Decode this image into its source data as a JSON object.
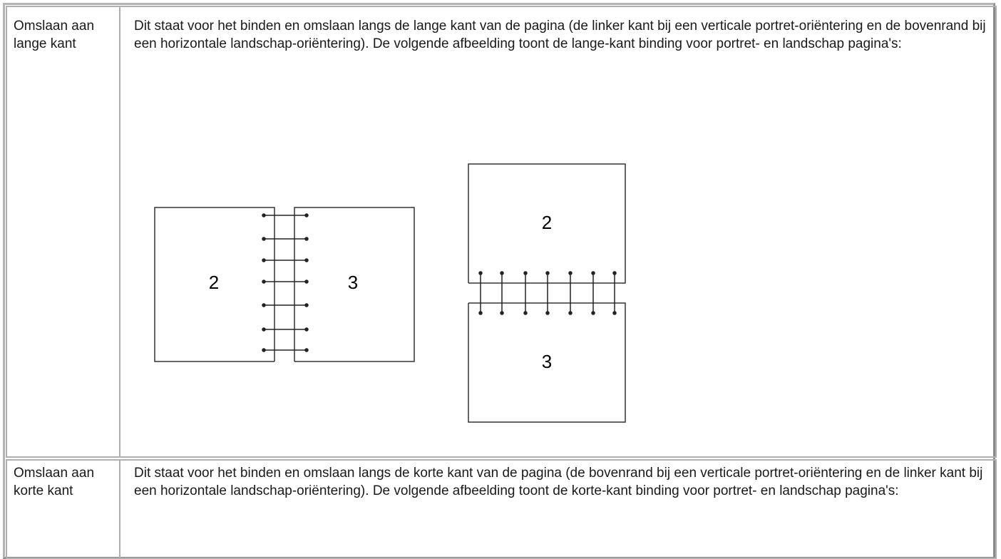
{
  "table": {
    "rows": [
      {
        "term": "Omslaan aan lange kant",
        "description": "Dit staat voor het binden en omslaan langs de lange kant van de pagina (de linker kant bij een verticale portret-oriëntering en de bovenrand bij een horizontale landschap-oriëntering). De volgende afbeelding toont de lange-kant binding voor portret- en landschap pagina's:",
        "figure_labels": [
          "2",
          "3",
          "2",
          "3"
        ]
      },
      {
        "term": "Omslaan aan korte kant",
        "description": "Dit staat voor het binden en omslaan langs de korte kant van de pagina (de bovenrand bij een verticale portret-oriëntering en de linker kant bij een horizontale landschap-oriëntering). De volgende afbeelding toont de korte-kant binding voor portret- en landschap pagina's:"
      }
    ]
  }
}
